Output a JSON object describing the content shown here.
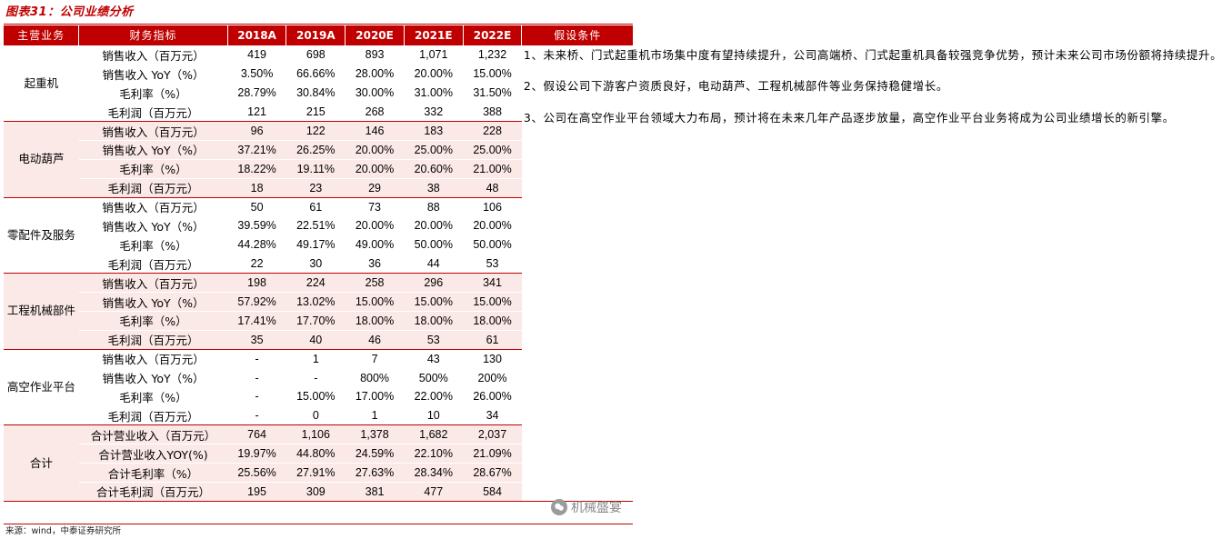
{
  "title": "图表31：公司业绩分析",
  "headers": {
    "segment": "主营业务",
    "metric": "财务指标",
    "years": [
      "2018A",
      "2019A",
      "2020E",
      "2021E",
      "2022E"
    ],
    "assumptions": "假设条件"
  },
  "groups": [
    {
      "name": "起重机",
      "rows": [
        {
          "metric": "销售收入（百万元）",
          "values": [
            "419",
            "698",
            "893",
            "1,071",
            "1,232"
          ]
        },
        {
          "metric": "销售收入 YoY（%）",
          "values": [
            "3.50%",
            "66.66%",
            "28.00%",
            "20.00%",
            "15.00%"
          ]
        },
        {
          "metric": "毛利率（%）",
          "values": [
            "28.79%",
            "30.84%",
            "30.00%",
            "31.00%",
            "31.50%"
          ]
        },
        {
          "metric": "毛利润（百万元）",
          "values": [
            "121",
            "215",
            "268",
            "332",
            "388"
          ]
        }
      ]
    },
    {
      "name": "电动葫芦",
      "rows": [
        {
          "metric": "销售收入（百万元）",
          "values": [
            "96",
            "122",
            "146",
            "183",
            "228"
          ]
        },
        {
          "metric": "销售收入 YoY（%）",
          "values": [
            "37.21%",
            "26.25%",
            "20.00%",
            "25.00%",
            "25.00%"
          ]
        },
        {
          "metric": "毛利率（%）",
          "values": [
            "18.22%",
            "19.11%",
            "20.00%",
            "20.60%",
            "21.00%"
          ]
        },
        {
          "metric": "毛利润（百万元）",
          "values": [
            "18",
            "23",
            "29",
            "38",
            "48"
          ]
        }
      ]
    },
    {
      "name": "零配件及服务",
      "rows": [
        {
          "metric": "销售收入（百万元）",
          "values": [
            "50",
            "61",
            "73",
            "88",
            "106"
          ]
        },
        {
          "metric": "销售收入 YoY（%）",
          "values": [
            "39.59%",
            "22.51%",
            "20.00%",
            "20.00%",
            "20.00%"
          ]
        },
        {
          "metric": "毛利率（%）",
          "values": [
            "44.28%",
            "49.17%",
            "49.00%",
            "50.00%",
            "50.00%"
          ]
        },
        {
          "metric": "毛利润（百万元）",
          "values": [
            "22",
            "30",
            "36",
            "44",
            "53"
          ]
        }
      ]
    },
    {
      "name": "工程机械部件",
      "rows": [
        {
          "metric": "销售收入（百万元）",
          "values": [
            "198",
            "224",
            "258",
            "296",
            "341"
          ]
        },
        {
          "metric": "销售收入 YoY（%）",
          "values": [
            "57.92%",
            "13.02%",
            "15.00%",
            "15.00%",
            "15.00%"
          ]
        },
        {
          "metric": "毛利率（%）",
          "values": [
            "17.41%",
            "17.70%",
            "18.00%",
            "18.00%",
            "18.00%"
          ]
        },
        {
          "metric": "毛利润（百万元）",
          "values": [
            "35",
            "40",
            "46",
            "53",
            "61"
          ]
        }
      ]
    },
    {
      "name": "高空作业平台",
      "rows": [
        {
          "metric": "销售收入（百万元）",
          "values": [
            "-",
            "1",
            "7",
            "43",
            "130"
          ]
        },
        {
          "metric": "销售收入 YoY（%）",
          "values": [
            "-",
            "-",
            "800%",
            "500%",
            "200%"
          ]
        },
        {
          "metric": "毛利率（%）",
          "values": [
            "-",
            "15.00%",
            "17.00%",
            "22.00%",
            "26.00%"
          ]
        },
        {
          "metric": "毛利润（百万元）",
          "values": [
            "-",
            "0",
            "1",
            "10",
            "34"
          ]
        }
      ]
    },
    {
      "name": "合计",
      "rows": [
        {
          "metric": "合计营业收入（百万元）",
          "values": [
            "764",
            "1,106",
            "1,378",
            "1,682",
            "2,037"
          ]
        },
        {
          "metric": "合计营业收入YOY(%)",
          "values": [
            "19.97%",
            "44.80%",
            "24.59%",
            "22.10%",
            "21.09%"
          ]
        },
        {
          "metric": "合计毛利率（%）",
          "values": [
            "25.56%",
            "27.91%",
            "27.63%",
            "28.34%",
            "28.67%"
          ]
        },
        {
          "metric": "合计毛利润（百万元）",
          "values": [
            "195",
            "309",
            "381",
            "477",
            "584"
          ]
        }
      ]
    }
  ],
  "assumptions": [
    "1、未来桥、门式起重机市场集中度有望持续提升，公司高端桥、门式起重机具备较强竞争优势，预计未来公司市场份额将持续提升。",
    "2、假设公司下游客户资质良好，电动葫芦、工程机械部件等业务保持稳健增长。",
    "3、公司在高空作业平台领域大力布局，预计将在未来几年产品逐步放量，高空作业平台业务将成为公司业绩增长的新引擎。"
  ],
  "source": "来源：wind，中泰证券研究所",
  "watermark": "机械盛宴"
}
